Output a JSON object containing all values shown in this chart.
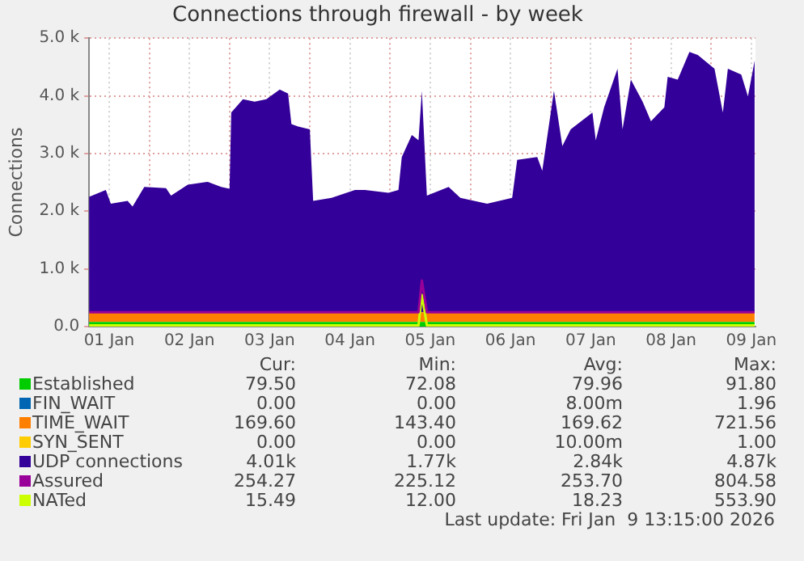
{
  "chart_data": {
    "type": "area",
    "title": "Connections through firewall - by week",
    "ylabel": "Connections",
    "stacked": true,
    "legend": "bottom",
    "grid": true,
    "xlim": [
      "2026-01-01T06:00",
      "2026-01-09T13:15"
    ],
    "xticks": [
      {
        "value": "2026-01-01T12:00",
        "label": "01 Jan"
      },
      {
        "value": "2026-01-02",
        "label": null
      },
      {
        "value": "2026-01-02T12:00",
        "label": "02 Jan"
      },
      {
        "value": "2026-01-03",
        "label": null
      },
      {
        "value": "2026-01-03T12:00",
        "label": "03 Jan"
      },
      {
        "value": "2026-01-04",
        "label": null
      },
      {
        "value": "2026-01-04T12:00",
        "label": "04 Jan"
      },
      {
        "value": "2026-01-05",
        "label": null
      },
      {
        "value": "2026-01-05T12:00",
        "label": "05 Jan"
      },
      {
        "value": "2026-01-06",
        "label": null
      },
      {
        "value": "2026-01-06T12:00",
        "label": "06 Jan"
      },
      {
        "value": "2026-01-07",
        "label": null
      },
      {
        "value": "2026-01-07T12:00",
        "label": "07 Jan"
      },
      {
        "value": "2026-01-08",
        "label": null
      },
      {
        "value": "2026-01-08T12:00",
        "label": "08 Jan"
      },
      {
        "value": "2026-01-09",
        "label": null
      },
      {
        "value": "2026-01-09T12:00",
        "label": "09 Jan"
      }
    ],
    "ylim": [
      0,
      5000
    ],
    "yticks": [
      {
        "value": 0,
        "label": "0.0"
      },
      {
        "value": 1000,
        "label": "1.0 k"
      },
      {
        "value": 2000,
        "label": "2.0 k"
      },
      {
        "value": 3000,
        "label": "3.0 k"
      },
      {
        "value": 4000,
        "label": "4.0 k"
      },
      {
        "value": 5000,
        "label": "5.0 k"
      }
    ],
    "x": [
      "2026-01-01T06:00",
      "2026-01-01T11:00",
      "2026-01-01T12:30",
      "2026-01-01T17:30",
      "2026-01-01T19:00",
      "2026-01-01T22:30",
      "2026-01-02T05:00",
      "2026-01-02T06:30",
      "2026-01-02T11:30",
      "2026-01-02T17:30",
      "2026-01-02T21:30",
      "2026-01-03T00:00",
      "2026-01-03T00:30",
      "2026-01-03T04:00",
      "2026-01-03T07:30",
      "2026-01-03T11:00",
      "2026-01-03T15:00",
      "2026-01-03T17:30",
      "2026-01-03T18:30",
      "2026-01-03T20:30",
      "2026-01-04T00:00",
      "2026-01-04T01:00",
      "2026-01-04T06:30",
      "2026-01-04T13:30",
      "2026-01-04T16:30",
      "2026-01-04T23:30",
      "2026-01-05T02:30",
      "2026-01-05T03:30",
      "2026-01-05T06:30",
      "2026-01-05T08:30",
      "2026-01-05T09:30",
      "2026-01-05T11:00",
      "2026-01-05T17:30",
      "2026-01-05T21:00",
      "2026-01-06T05:00",
      "2026-01-06T12:30",
      "2026-01-06T14:00",
      "2026-01-06T20:00",
      "2026-01-06T21:30",
      "2026-01-07T01:00",
      "2026-01-07T03:30",
      "2026-01-07T06:00",
      "2026-01-07T12:30",
      "2026-01-07T13:30",
      "2026-01-07T16:00",
      "2026-01-07T20:00",
      "2026-01-07T21:30",
      "2026-01-08T00:00",
      "2026-01-08T03:30",
      "2026-01-08T06:00",
      "2026-01-08T10:00",
      "2026-01-08T11:00",
      "2026-01-08T14:00",
      "2026-01-08T17:30",
      "2026-01-08T20:00",
      "2026-01-09T01:00",
      "2026-01-09T03:30",
      "2026-01-09T05:00",
      "2026-01-09T09:00",
      "2026-01-09T11:00",
      "2026-01-09T13:00"
    ],
    "series": [
      {
        "name": "Established",
        "color": "#00cc00",
        "values": [
          80,
          80,
          80,
          80,
          80,
          80,
          80,
          80,
          80,
          80,
          80,
          80,
          80,
          80,
          80,
          80,
          80,
          80,
          80,
          80,
          80,
          80,
          80,
          80,
          80,
          80,
          80,
          80,
          80,
          80,
          80,
          80,
          80,
          80,
          80,
          80,
          80,
          80,
          80,
          80,
          80,
          80,
          80,
          80,
          80,
          80,
          80,
          80,
          80,
          80,
          80,
          80,
          80,
          80,
          80,
          80,
          80,
          80,
          80,
          80,
          80
        ]
      },
      {
        "name": "FIN_WAIT",
        "color": "#0066b3",
        "values": [
          null,
          null,
          null,
          null,
          null,
          null,
          null,
          null,
          null,
          null,
          null,
          null,
          null,
          null,
          null,
          null,
          null,
          null,
          null,
          null,
          null,
          null,
          null,
          null,
          null,
          null,
          null,
          null,
          null,
          null,
          null,
          null,
          null,
          null,
          null,
          null,
          null,
          null,
          null,
          null,
          null,
          null,
          null,
          null,
          null,
          null,
          null,
          null,
          null,
          null,
          null,
          null,
          null,
          null,
          null,
          null,
          null,
          null,
          null,
          null,
          null
        ]
      },
      {
        "name": "TIME_WAIT",
        "color": "#ff8000",
        "values": [
          170,
          170,
          170,
          170,
          170,
          170,
          170,
          170,
          170,
          170,
          170,
          170,
          170,
          170,
          170,
          170,
          170,
          170,
          170,
          170,
          170,
          170,
          170,
          170,
          170,
          170,
          170,
          170,
          170,
          170,
          170,
          170,
          170,
          170,
          170,
          170,
          170,
          170,
          170,
          170,
          170,
          170,
          170,
          170,
          170,
          170,
          170,
          170,
          170,
          170,
          170,
          170,
          170,
          170,
          170,
          170,
          170,
          170,
          170,
          170,
          170
        ]
      },
      {
        "name": "SYN_SENT",
        "color": "#ffcc00",
        "values": [
          null,
          null,
          null,
          null,
          null,
          null,
          null,
          null,
          null,
          null,
          null,
          null,
          null,
          null,
          null,
          null,
          null,
          null,
          null,
          null,
          null,
          null,
          null,
          null,
          null,
          null,
          null,
          null,
          null,
          null,
          null,
          null,
          null,
          null,
          null,
          null,
          null,
          null,
          null,
          null,
          null,
          null,
          null,
          null,
          null,
          null,
          null,
          null,
          null,
          null,
          null,
          null,
          null,
          null,
          null,
          null,
          null,
          null,
          null,
          null,
          null
        ]
      },
      {
        "name": "UDP connections",
        "color": "#330099",
        "values": [
          2000,
          2120,
          1880,
          1930,
          1830,
          2170,
          2150,
          2020,
          2210,
          2260,
          2170,
          2140,
          3460,
          3690,
          3650,
          3690,
          3860,
          3790,
          3260,
          3220,
          3170,
          1930,
          1980,
          2120,
          2120,
          2070,
          2120,
          2690,
          3070,
          2980,
          3840,
          2020,
          2170,
          1980,
          1880,
          1980,
          2640,
          2690,
          2450,
          3840,
          2880,
          3170,
          3460,
          2980,
          3550,
          4220,
          3170,
          4030,
          3650,
          3310,
          3550,
          4080,
          4030,
          4510,
          4460,
          4220,
          3460,
          4220,
          4120,
          3740,
          4360
        ]
      },
      {
        "name": "Assured",
        "type": "line",
        "color": "#990099",
        "values": [
          250,
          250,
          250,
          250,
          250,
          250,
          250,
          250,
          250,
          250,
          250,
          250,
          250,
          250,
          250,
          250,
          250,
          250,
          250,
          250,
          250,
          250,
          250,
          250,
          250,
          250,
          250,
          250,
          250,
          250,
          800,
          250,
          250,
          250,
          250,
          250,
          250,
          250,
          250,
          250,
          250,
          250,
          250,
          250,
          250,
          250,
          250,
          250,
          250,
          250,
          250,
          250,
          250,
          250,
          250,
          250,
          250,
          250,
          250,
          250,
          250
        ]
      },
      {
        "name": "NATed",
        "type": "line",
        "color": "#ccff00",
        "values": [
          20,
          20,
          20,
          20,
          20,
          20,
          20,
          20,
          20,
          20,
          20,
          20,
          20,
          20,
          20,
          20,
          20,
          20,
          20,
          20,
          20,
          20,
          20,
          20,
          20,
          20,
          20,
          20,
          20,
          20,
          550,
          20,
          20,
          20,
          20,
          20,
          20,
          20,
          20,
          20,
          20,
          20,
          20,
          20,
          20,
          20,
          20,
          20,
          20,
          20,
          20,
          20,
          20,
          20,
          20,
          20,
          20,
          20,
          20,
          20,
          20
        ]
      }
    ],
    "annotations": [
      "Cur:",
      "Min:",
      "Avg:",
      "Max:",
      "79.50",
      "72.08",
      "79.96",
      "91.80",
      "0.00",
      "0.00",
      "8.00m",
      "1.96",
      "169.60",
      "143.40",
      "169.62",
      "721.56",
      "0.00",
      "0.00",
      "10.00m",
      "1.00",
      "4.01k",
      "1.77k",
      "2.84k",
      "4.87k",
      "254.27",
      "225.12",
      "253.70",
      "804.58",
      "15.49",
      "12.00",
      "18.23",
      "553.90",
      "Last update: Fri Jan  9 13:15:00 2026"
    ]
  }
}
